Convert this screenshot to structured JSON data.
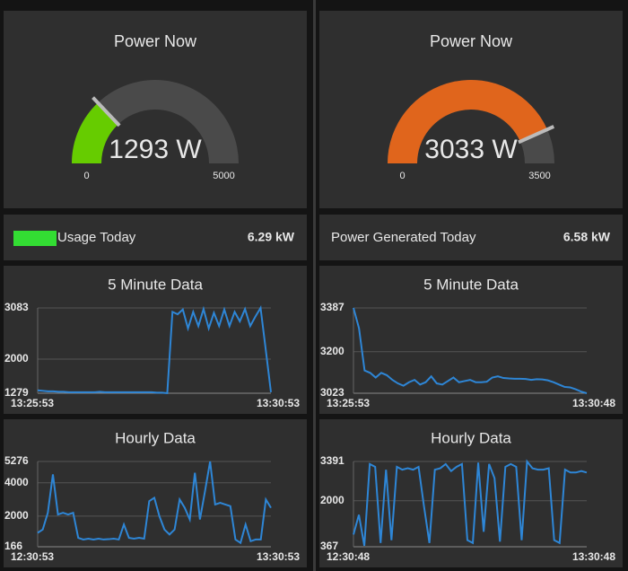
{
  "columns": [
    {
      "gauge": {
        "title": "Power Now",
        "value": 1293,
        "value_label": "1293 W",
        "min": 0,
        "max": 5000,
        "color": "#66cc00"
      },
      "stat": {
        "label": "Usage Today",
        "value": "6.29 kW",
        "swatch": "#33dd33"
      },
      "charts": [
        {
          "title": "5 Minute Data",
          "ylim": [
            1279,
            3083
          ],
          "yticks": [
            1279,
            2000,
            3083
          ],
          "x_labels": [
            "13:25:53",
            "13:30:53"
          ],
          "color": "#2e86d6",
          "values": [
            1340,
            1330,
            1320,
            1320,
            1310,
            1310,
            1300,
            1300,
            1300,
            1300,
            1300,
            1300,
            1310,
            1300,
            1300,
            1300,
            1300,
            1300,
            1300,
            1300,
            1300,
            1300,
            1300,
            1290,
            1290,
            1280,
            3000,
            2950,
            3050,
            2650,
            3000,
            2700,
            3060,
            2650,
            2980,
            2700,
            3050,
            2700,
            3000,
            2800,
            3060,
            2700,
            2900,
            3083,
            2200,
            1300
          ]
        },
        {
          "title": "Hourly Data",
          "ylim": [
            166,
            5276
          ],
          "yticks": [
            166,
            2000,
            4000,
            5276
          ],
          "x_labels": [
            "12:30:53",
            "13:30:53"
          ],
          "color": "#2e86d6",
          "values": [
            1000,
            1200,
            2200,
            4500,
            2100,
            2200,
            2100,
            2200,
            700,
            600,
            650,
            600,
            650,
            600,
            620,
            650,
            600,
            1500,
            700,
            650,
            700,
            650,
            2900,
            3100,
            2000,
            1200,
            900,
            1200,
            3000,
            2500,
            1800,
            4600,
            1800,
            3500,
            5276,
            2700,
            2800,
            2700,
            2600,
            600,
            400,
            1500,
            500,
            600,
            600,
            3000,
            2500
          ]
        }
      ]
    },
    {
      "gauge": {
        "title": "Power Now",
        "value": 3033,
        "value_label": "3033 W",
        "min": 0,
        "max": 3500,
        "color": "#e0651c"
      },
      "stat": {
        "label": "Power Generated Today",
        "value": "6.58 kW"
      },
      "charts": [
        {
          "title": "5 Minute Data",
          "ylim": [
            3023,
            3387
          ],
          "yticks": [
            3023,
            3200,
            3387
          ],
          "x_labels": [
            "13:25:53",
            "13:30:48"
          ],
          "color": "#2e86d6",
          "values": [
            3387,
            3300,
            3120,
            3110,
            3090,
            3110,
            3100,
            3080,
            3065,
            3055,
            3070,
            3080,
            3060,
            3070,
            3095,
            3065,
            3060,
            3075,
            3090,
            3070,
            3075,
            3080,
            3070,
            3070,
            3072,
            3090,
            3095,
            3088,
            3086,
            3085,
            3085,
            3084,
            3080,
            3083,
            3082,
            3078,
            3070,
            3060,
            3050,
            3048,
            3040,
            3030,
            3023
          ]
        },
        {
          "title": "Hourly Data",
          "ylim": [
            367,
            3391
          ],
          "yticks": [
            367,
            2000,
            3391
          ],
          "x_labels": [
            "12:30:48",
            "13:30:48"
          ],
          "color": "#2e86d6",
          "values": [
            800,
            1500,
            400,
            3300,
            3200,
            500,
            3100,
            600,
            3200,
            3100,
            3150,
            3100,
            3200,
            1800,
            500,
            3100,
            3150,
            3300,
            3050,
            3200,
            3300,
            600,
            500,
            3350,
            900,
            3300,
            2800,
            550,
            3200,
            3300,
            3200,
            600,
            3391,
            3150,
            3100,
            3100,
            3150,
            600,
            500,
            3100,
            3000,
            3000,
            3050,
            3000
          ]
        }
      ]
    }
  ]
}
